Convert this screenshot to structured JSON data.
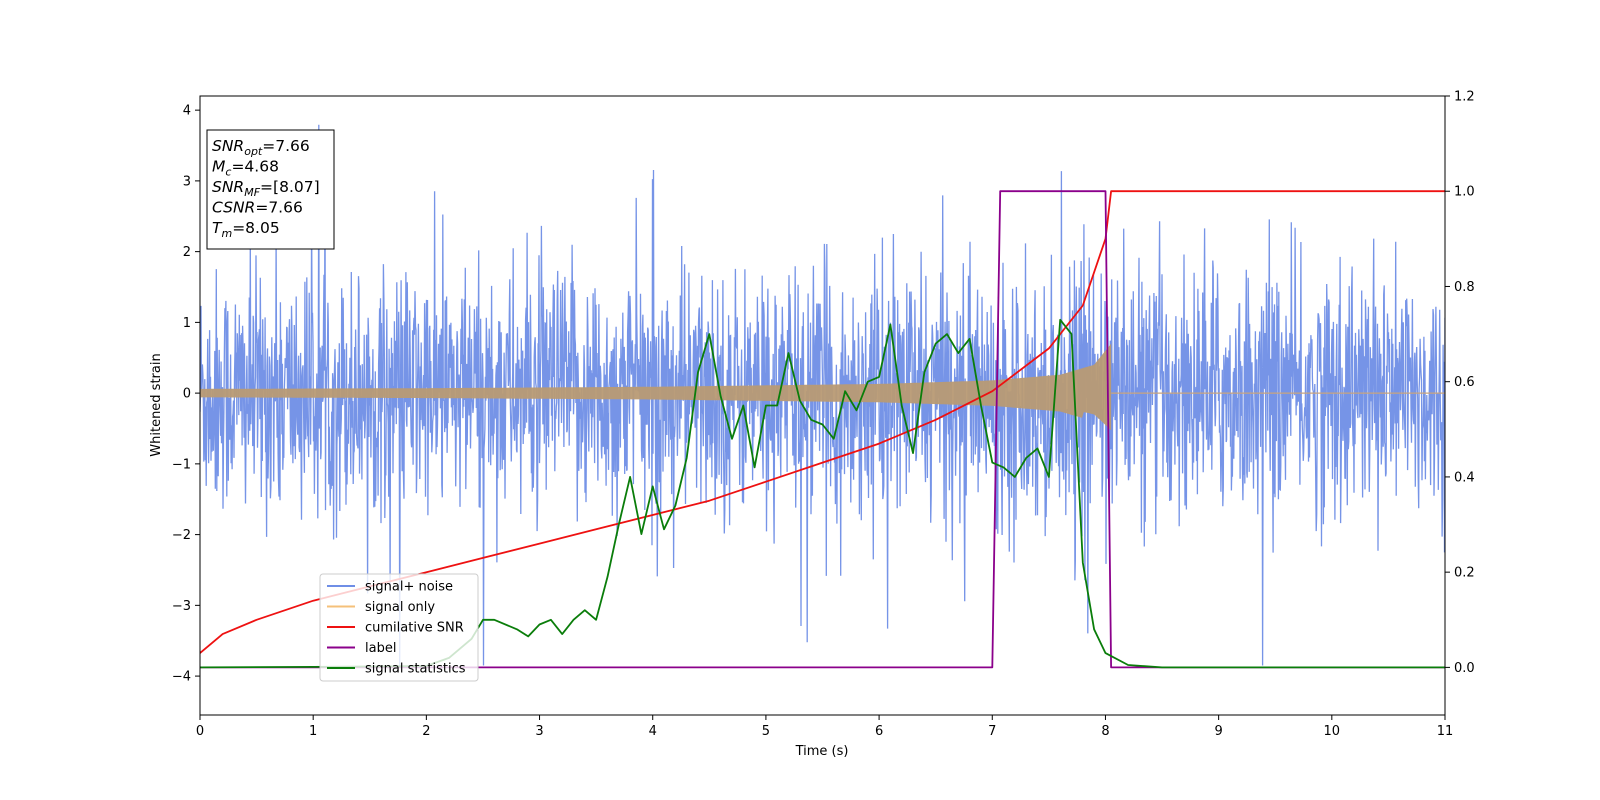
{
  "chart_data": {
    "type": "line",
    "xlabel": "Time (s)",
    "ylabel": "Whitened strain",
    "xlim": [
      0,
      11
    ],
    "ylim": [
      -4.55,
      4.2
    ],
    "y2lim": [
      -0.1,
      1.2
    ],
    "x_ticks": [
      0,
      1,
      2,
      3,
      4,
      5,
      6,
      7,
      8,
      9,
      10,
      11
    ],
    "y_ticks": [
      -4,
      -3,
      -2,
      -1,
      0,
      1,
      2,
      3,
      4
    ],
    "y2_ticks": [
      0.0,
      0.2,
      0.4,
      0.6,
      0.8,
      1.0,
      1.2
    ],
    "legend_placement": "lower-left",
    "grid": false,
    "info_box": {
      "placement": "top-left",
      "lines": [
        {
          "name": "SNR",
          "sub": "opt",
          "value": "=7.66"
        },
        {
          "name": "M",
          "sub": "c",
          "value": "=4.68"
        },
        {
          "name": "SNR",
          "sub": "MF",
          "value": "=[8.07]"
        },
        {
          "name": "CSNR",
          "sub": "",
          "value": "=7.66"
        },
        {
          "name": "T",
          "sub": "m",
          "value": "=8.05"
        }
      ]
    },
    "series": [
      {
        "name": "signal+ noise",
        "color": "#6f8ee6",
        "axis": "left",
        "kind": "noise",
        "sigma": 0.85,
        "t_start": 0,
        "t_end": 11
      },
      {
        "name": "signal only",
        "color": "#f5c07a",
        "axis": "left",
        "kind": "chirp",
        "t_start": 0,
        "t_merge": 8.05,
        "envelope": [
          [
            0,
            0.06
          ],
          [
            2,
            0.07
          ],
          [
            4,
            0.09
          ],
          [
            6,
            0.13
          ],
          [
            7,
            0.18
          ],
          [
            7.6,
            0.26
          ],
          [
            7.9,
            0.4
          ],
          [
            8.05,
            0.7
          ]
        ]
      },
      {
        "name": "cumilative SNR",
        "color": "#ee1111",
        "axis": "right",
        "points": [
          [
            0,
            0.03
          ],
          [
            0.2,
            0.07
          ],
          [
            0.5,
            0.1
          ],
          [
            1,
            0.14
          ],
          [
            1.5,
            0.17
          ],
          [
            2,
            0.2
          ],
          [
            2.5,
            0.23
          ],
          [
            3,
            0.26
          ],
          [
            3.5,
            0.29
          ],
          [
            4,
            0.32
          ],
          [
            4.5,
            0.35
          ],
          [
            5,
            0.39
          ],
          [
            5.5,
            0.43
          ],
          [
            6,
            0.47
          ],
          [
            6.5,
            0.52
          ],
          [
            7,
            0.58
          ],
          [
            7.5,
            0.67
          ],
          [
            7.8,
            0.76
          ],
          [
            8.0,
            0.9
          ],
          [
            8.05,
            1.0
          ],
          [
            11,
            1.0
          ]
        ]
      },
      {
        "name": "label",
        "color": "#8b008b",
        "axis": "right",
        "points": [
          [
            0,
            0.0
          ],
          [
            7.0,
            0.0
          ],
          [
            7.07,
            1.0
          ],
          [
            8.0,
            1.0
          ],
          [
            8.05,
            0.0
          ],
          [
            11,
            0.0
          ]
        ]
      },
      {
        "name": "signal statistics",
        "color": "#0a7d0a",
        "axis": "right",
        "points": [
          [
            0,
            0.0
          ],
          [
            1.0,
            0.001
          ],
          [
            2.0,
            0.003
          ],
          [
            2.2,
            0.02
          ],
          [
            2.4,
            0.06
          ],
          [
            2.5,
            0.1
          ],
          [
            2.6,
            0.1
          ],
          [
            2.8,
            0.08
          ],
          [
            2.9,
            0.065
          ],
          [
            3.0,
            0.09
          ],
          [
            3.1,
            0.1
          ],
          [
            3.2,
            0.07
          ],
          [
            3.3,
            0.1
          ],
          [
            3.4,
            0.12
          ],
          [
            3.5,
            0.1
          ],
          [
            3.6,
            0.19
          ],
          [
            3.7,
            0.3
          ],
          [
            3.8,
            0.4
          ],
          [
            3.9,
            0.28
          ],
          [
            4.0,
            0.38
          ],
          [
            4.1,
            0.29
          ],
          [
            4.2,
            0.34
          ],
          [
            4.3,
            0.44
          ],
          [
            4.4,
            0.62
          ],
          [
            4.5,
            0.7
          ],
          [
            4.6,
            0.57
          ],
          [
            4.7,
            0.48
          ],
          [
            4.8,
            0.55
          ],
          [
            4.9,
            0.42
          ],
          [
            5.0,
            0.55
          ],
          [
            5.1,
            0.55
          ],
          [
            5.2,
            0.66
          ],
          [
            5.3,
            0.56
          ],
          [
            5.4,
            0.52
          ],
          [
            5.5,
            0.51
          ],
          [
            5.6,
            0.48
          ],
          [
            5.7,
            0.58
          ],
          [
            5.8,
            0.54
          ],
          [
            5.9,
            0.6
          ],
          [
            6.0,
            0.61
          ],
          [
            6.1,
            0.72
          ],
          [
            6.2,
            0.55
          ],
          [
            6.3,
            0.45
          ],
          [
            6.4,
            0.62
          ],
          [
            6.5,
            0.68
          ],
          [
            6.6,
            0.7
          ],
          [
            6.7,
            0.66
          ],
          [
            6.8,
            0.69
          ],
          [
            6.9,
            0.55
          ],
          [
            7.0,
            0.43
          ],
          [
            7.1,
            0.42
          ],
          [
            7.2,
            0.4
          ],
          [
            7.3,
            0.44
          ],
          [
            7.4,
            0.46
          ],
          [
            7.5,
            0.4
          ],
          [
            7.6,
            0.73
          ],
          [
            7.7,
            0.7
          ],
          [
            7.8,
            0.22
          ],
          [
            7.9,
            0.08
          ],
          [
            8.0,
            0.03
          ],
          [
            8.2,
            0.005
          ],
          [
            8.5,
            0.0
          ],
          [
            11,
            0.0
          ]
        ]
      }
    ]
  }
}
